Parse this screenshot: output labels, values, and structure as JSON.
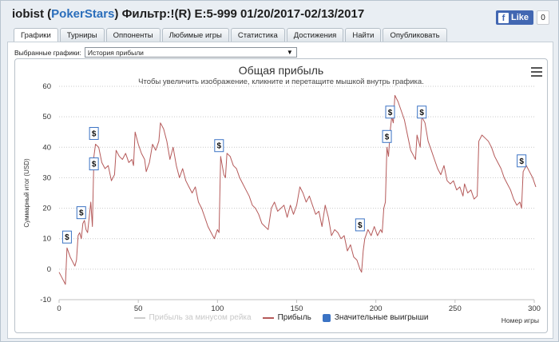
{
  "header": {
    "player": "iobist",
    "room": "PokerStars",
    "filter_text": "Фильтр:!(R) E:5-999 01/20/2017-02/13/2017"
  },
  "facebook": {
    "like_label": "Like",
    "count": "0"
  },
  "tabs": [
    {
      "label": "Графики",
      "active": true
    },
    {
      "label": "Турниры",
      "active": false
    },
    {
      "label": "Оппоненты",
      "active": false
    },
    {
      "label": "Любимые игры",
      "active": false
    },
    {
      "label": "Статистика",
      "active": false
    },
    {
      "label": "Достижения",
      "active": false
    },
    {
      "label": "Найти",
      "active": false
    },
    {
      "label": "Опубликовать",
      "active": false
    }
  ],
  "selector": {
    "label": "Выбранные графики:",
    "value": "История прибыли"
  },
  "chart_data": {
    "type": "line",
    "title": "Общая прибыль",
    "subtitle": "Чтобы увеличить изображение, кликните и перетащите мышкой внутрь графика.",
    "xlabel": "Номер игры",
    "ylabel": "Суммарный итог (USD)",
    "xlim": [
      0,
      300
    ],
    "ylim": [
      -10,
      60
    ],
    "xticks": [
      0,
      50,
      100,
      150,
      200,
      250,
      300
    ],
    "yticks": [
      -10,
      0,
      10,
      20,
      30,
      40,
      50,
      60
    ],
    "grid": "horizontal-dotted",
    "series": [
      {
        "name": "Прибыль",
        "color": "#b55a5a",
        "points": [
          [
            0,
            -1
          ],
          [
            2,
            -3
          ],
          [
            4,
            -5
          ],
          [
            5,
            7
          ],
          [
            7,
            4
          ],
          [
            9,
            2
          ],
          [
            10,
            1
          ],
          [
            11,
            3
          ],
          [
            12,
            11
          ],
          [
            13,
            12
          ],
          [
            14,
            10
          ],
          [
            15,
            15
          ],
          [
            16,
            16
          ],
          [
            17,
            13
          ],
          [
            18,
            12
          ],
          [
            19,
            17
          ],
          [
            20,
            22
          ],
          [
            21,
            14
          ],
          [
            22,
            37
          ],
          [
            23,
            41
          ],
          [
            25,
            40
          ],
          [
            27,
            35
          ],
          [
            29,
            33
          ],
          [
            31,
            34
          ],
          [
            33,
            29
          ],
          [
            35,
            31
          ],
          [
            36,
            39
          ],
          [
            38,
            37
          ],
          [
            40,
            36
          ],
          [
            42,
            38
          ],
          [
            44,
            35
          ],
          [
            46,
            36
          ],
          [
            47,
            34
          ],
          [
            48,
            45
          ],
          [
            50,
            41
          ],
          [
            52,
            38
          ],
          [
            54,
            36
          ],
          [
            55,
            32
          ],
          [
            57,
            35
          ],
          [
            59,
            41
          ],
          [
            61,
            39
          ],
          [
            63,
            42
          ],
          [
            64,
            48
          ],
          [
            66,
            46
          ],
          [
            68,
            42
          ],
          [
            70,
            36
          ],
          [
            72,
            40
          ],
          [
            74,
            34
          ],
          [
            76,
            30
          ],
          [
            78,
            33
          ],
          [
            80,
            29
          ],
          [
            82,
            27
          ],
          [
            84,
            25
          ],
          [
            86,
            27
          ],
          [
            88,
            22
          ],
          [
            90,
            20
          ],
          [
            92,
            17
          ],
          [
            94,
            14
          ],
          [
            96,
            12
          ],
          [
            98,
            10
          ],
          [
            100,
            13
          ],
          [
            101,
            12
          ],
          [
            102,
            37
          ],
          [
            104,
            31
          ],
          [
            105,
            30
          ],
          [
            106,
            38
          ],
          [
            108,
            37
          ],
          [
            110,
            34
          ],
          [
            112,
            33
          ],
          [
            114,
            30
          ],
          [
            116,
            28
          ],
          [
            118,
            26
          ],
          [
            120,
            24
          ],
          [
            122,
            21
          ],
          [
            124,
            20
          ],
          [
            126,
            18
          ],
          [
            128,
            15
          ],
          [
            130,
            14
          ],
          [
            132,
            13
          ],
          [
            134,
            20
          ],
          [
            136,
            22
          ],
          [
            138,
            19
          ],
          [
            140,
            20
          ],
          [
            142,
            21
          ],
          [
            144,
            17
          ],
          [
            146,
            21
          ],
          [
            148,
            18
          ],
          [
            150,
            21
          ],
          [
            152,
            27
          ],
          [
            154,
            25
          ],
          [
            156,
            22
          ],
          [
            158,
            24
          ],
          [
            160,
            21
          ],
          [
            162,
            18
          ],
          [
            164,
            19
          ],
          [
            166,
            14
          ],
          [
            168,
            21
          ],
          [
            170,
            17
          ],
          [
            172,
            11
          ],
          [
            174,
            13
          ],
          [
            176,
            12
          ],
          [
            178,
            10
          ],
          [
            180,
            11
          ],
          [
            182,
            6
          ],
          [
            184,
            8
          ],
          [
            186,
            4
          ],
          [
            188,
            3
          ],
          [
            190,
            0
          ],
          [
            191,
            -1
          ],
          [
            192,
            6
          ],
          [
            193,
            10
          ],
          [
            195,
            13
          ],
          [
            197,
            11
          ],
          [
            199,
            14
          ],
          [
            201,
            11
          ],
          [
            203,
            13
          ],
          [
            204,
            12
          ],
          [
            205,
            20
          ],
          [
            206,
            22
          ],
          [
            207,
            40
          ],
          [
            208,
            37
          ],
          [
            209,
            45
          ],
          [
            210,
            50
          ],
          [
            211,
            48
          ],
          [
            212,
            57
          ],
          [
            214,
            55
          ],
          [
            216,
            52
          ],
          [
            218,
            49
          ],
          [
            220,
            44
          ],
          [
            222,
            39
          ],
          [
            224,
            37
          ],
          [
            225,
            36
          ],
          [
            226,
            44
          ],
          [
            228,
            40
          ],
          [
            229,
            50
          ],
          [
            231,
            48
          ],
          [
            233,
            42
          ],
          [
            235,
            39
          ],
          [
            237,
            36
          ],
          [
            239,
            33
          ],
          [
            241,
            31
          ],
          [
            243,
            34
          ],
          [
            245,
            29
          ],
          [
            247,
            28
          ],
          [
            249,
            29
          ],
          [
            251,
            26
          ],
          [
            253,
            27
          ],
          [
            255,
            24
          ],
          [
            256,
            28
          ],
          [
            258,
            25
          ],
          [
            260,
            26
          ],
          [
            262,
            23
          ],
          [
            264,
            24
          ],
          [
            265,
            42
          ],
          [
            267,
            44
          ],
          [
            269,
            43
          ],
          [
            271,
            42
          ],
          [
            273,
            40
          ],
          [
            275,
            37
          ],
          [
            277,
            35
          ],
          [
            279,
            33
          ],
          [
            281,
            30
          ],
          [
            283,
            28
          ],
          [
            285,
            26
          ],
          [
            287,
            23
          ],
          [
            289,
            21
          ],
          [
            291,
            22
          ],
          [
            292,
            20
          ],
          [
            293,
            32
          ],
          [
            295,
            34
          ],
          [
            297,
            32
          ],
          [
            299,
            30
          ],
          [
            301,
            27
          ]
        ]
      },
      {
        "name": "Прибыль за минусом рейка",
        "color": "#cccccc",
        "hidden": true,
        "points": []
      }
    ],
    "markers": [
      {
        "x": 5,
        "y": 7,
        "label": "$"
      },
      {
        "x": 14,
        "y": 15,
        "label": "$"
      },
      {
        "x": 22,
        "y": 31,
        "label": "$"
      },
      {
        "x": 22,
        "y": 41,
        "label": "$"
      },
      {
        "x": 101,
        "y": 37,
        "label": "$"
      },
      {
        "x": 190,
        "y": 11,
        "label": "$"
      },
      {
        "x": 207,
        "y": 40,
        "label": "$"
      },
      {
        "x": 209,
        "y": 48,
        "label": "$"
      },
      {
        "x": 229,
        "y": 48,
        "label": "$"
      },
      {
        "x": 292,
        "y": 32,
        "label": "$"
      }
    ],
    "legend": [
      {
        "label": "Прибыль за минусом рейка",
        "type": "line",
        "hidden": true
      },
      {
        "label": "Прибыль",
        "type": "line",
        "hidden": false
      },
      {
        "label": "Значительные выигрыши",
        "type": "box",
        "hidden": false
      }
    ]
  }
}
